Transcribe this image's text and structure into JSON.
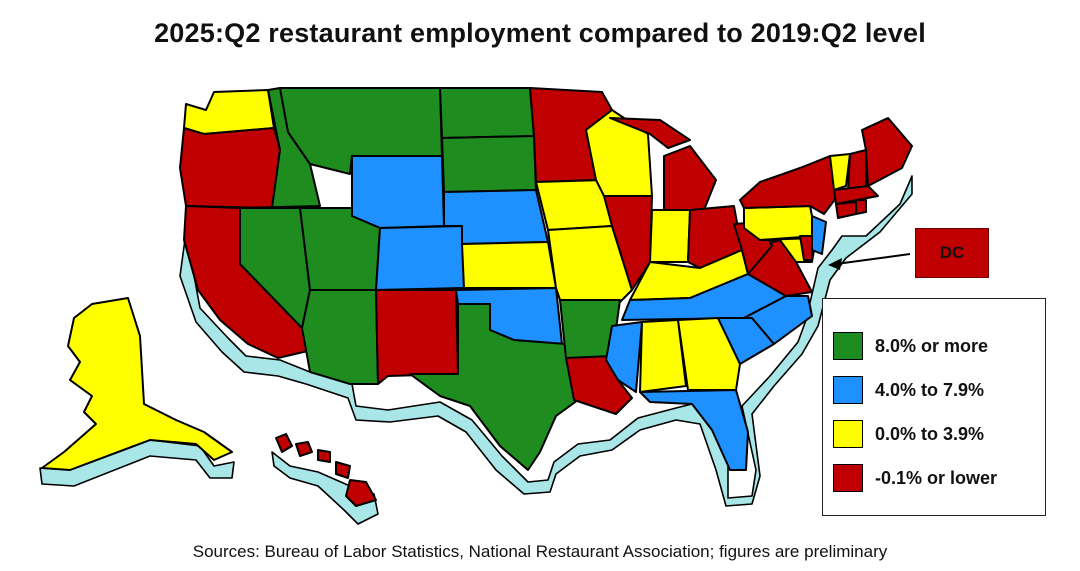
{
  "title": "2025:Q2 restaurant employment compared to 2019:Q2 level",
  "source": "Sources: Bureau of Labor Statistics, National Restaurant Association; figures are preliminary",
  "dc_label": "DC",
  "colors": {
    "green": "#1e8c1e",
    "blue": "#1e90ff",
    "yellow": "#ffff00",
    "red": "#c00000",
    "extrusion": "#a8e6e8"
  },
  "legend": [
    {
      "label": "8.0% or more",
      "color": "#1e8c1e"
    },
    {
      "label": "4.0% to 7.9%",
      "color": "#1e90ff"
    },
    {
      "label": "0.0% to 3.9%",
      "color": "#ffff00"
    },
    {
      "label": "-0.1% or lower",
      "color": "#c00000"
    }
  ],
  "state_categories": {
    "green": [
      "ID",
      "MT",
      "NV",
      "UT",
      "AZ",
      "ND",
      "SD",
      "TX",
      "AR"
    ],
    "blue": [
      "WY",
      "NE",
      "CO",
      "OK",
      "TN",
      "MS",
      "SC",
      "NC",
      "FL",
      "NJ"
    ],
    "yellow": [
      "WA",
      "WI",
      "IA",
      "KS",
      "MO",
      "IN",
      "KY",
      "AL",
      "GA",
      "PA",
      "VT",
      "MD",
      "AK"
    ],
    "red": [
      "OR",
      "CA",
      "NM",
      "MN",
      "MI",
      "IL",
      "OH",
      "WV",
      "VA",
      "NY",
      "ME",
      "NH",
      "MA",
      "CT",
      "RI",
      "DE",
      "LA",
      "HI",
      "DC"
    ]
  }
}
